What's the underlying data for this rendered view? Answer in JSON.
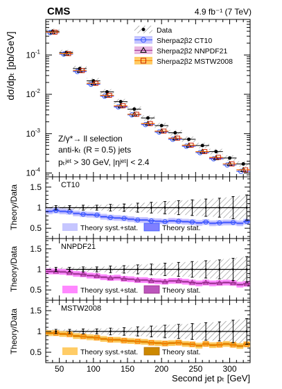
{
  "chart_data": [
    {
      "type": "scatter",
      "panel": "main",
      "experiment_label": "CMS",
      "luminosity_label": "4.9 fb⁻¹ (7 TeV)",
      "ylabel": "dσ/dpₜ [pb/GeV]",
      "yscale": "log",
      "ylim": [
        8e-05,
        0.8
      ],
      "xlim": [
        30,
        330
      ],
      "y_ticks": [
        {
          "value": 0.1,
          "base": "10",
          "exp": "-1"
        },
        {
          "value": 0.01,
          "base": "10",
          "exp": "-2"
        },
        {
          "value": 0.001,
          "base": "10",
          "exp": "-3"
        },
        {
          "value": 0.0001,
          "base": "10",
          "exp": "-4"
        }
      ],
      "annotations": [
        "Z/γ*→ ll selection",
        "anti-kₜ (R = 0.5) jets",
        "pₜʲᵉᵗ > 30 GeV, |ηʲᵉᵗ| < 2.4"
      ],
      "legend": [
        "Data",
        "Sherpa2β2 CT10",
        "Sherpa2β2 NNPDF21",
        "Sherpa2β2 MSTW2008"
      ],
      "legend_placement": "top-right",
      "colors": {
        "data": "#000000",
        "ct10": "#3355ff",
        "nnpdf": "#9a2a8a",
        "mstw": "#ff7f00",
        "hatch": "#888888"
      },
      "bin_edges": [
        30,
        40,
        50,
        60,
        70,
        80,
        90,
        100,
        110,
        120,
        130,
        140,
        150,
        160,
        170,
        180,
        190,
        200,
        210,
        220,
        230,
        240,
        250,
        260,
        270,
        280,
        290,
        300,
        310,
        320,
        330
      ],
      "bins": [
        {
          "x": 40,
          "lo": 30,
          "hi": 50
        },
        {
          "x": 60,
          "lo": 50,
          "hi": 70
        },
        {
          "x": 80,
          "lo": 70,
          "hi": 90
        },
        {
          "x": 100,
          "lo": 90,
          "hi": 110
        },
        {
          "x": 120,
          "lo": 110,
          "hi": 130
        },
        {
          "x": 140,
          "lo": 130,
          "hi": 150
        },
        {
          "x": 160,
          "lo": 150,
          "hi": 170
        },
        {
          "x": 180,
          "lo": 170,
          "hi": 190
        },
        {
          "x": 200,
          "lo": 190,
          "hi": 210
        },
        {
          "x": 220,
          "lo": 210,
          "hi": 230
        },
        {
          "x": 240,
          "lo": 230,
          "hi": 250
        },
        {
          "x": 260,
          "lo": 250,
          "hi": 270
        },
        {
          "x": 280,
          "lo": 270,
          "hi": 290
        },
        {
          "x": 300,
          "lo": 290,
          "hi": 310
        },
        {
          "x": 320,
          "lo": 310,
          "hi": 330
        }
      ],
      "series": [
        {
          "name": "Data",
          "key": "data",
          "values": [
            0.4,
            0.115,
            0.045,
            0.022,
            0.0115,
            0.0065,
            0.0042,
            0.0025,
            0.0016,
            0.00105,
            0.00072,
            0.0005,
            0.00035,
            0.00024,
            0.00017
          ]
        },
        {
          "name": "Sherpa2β2 CT10",
          "key": "ct10",
          "values": [
            0.37,
            0.105,
            0.038,
            0.018,
            0.009,
            0.0048,
            0.003,
            0.0017,
            0.0011,
            0.00072,
            0.00048,
            0.00033,
            0.00023,
            0.00016,
            0.00011
          ]
        },
        {
          "name": "Sherpa2β2 NNPDF21",
          "key": "nnpdf",
          "values": [
            0.38,
            0.108,
            0.04,
            0.019,
            0.0093,
            0.005,
            0.0031,
            0.0018,
            0.00115,
            0.00076,
            0.0005,
            0.00035,
            0.00024,
            0.00017,
            0.00012
          ]
        },
        {
          "name": "Sherpa2β2 MSTW2008",
          "key": "mstw",
          "values": [
            0.38,
            0.108,
            0.04,
            0.019,
            0.0094,
            0.0051,
            0.0031,
            0.0018,
            0.00116,
            0.00077,
            0.00051,
            0.00035,
            0.00025,
            0.00017,
            0.00012
          ]
        }
      ]
    },
    {
      "type": "line",
      "panel": "ratio",
      "label": "CT10",
      "ylabel": "Theory/Data",
      "ylim": [
        0.25,
        1.75
      ],
      "y_ticks": [
        0.5,
        1,
        1.5
      ],
      "legend": [
        "Theory syst.+stat.",
        "Theory stat."
      ],
      "colors": {
        "syst_band": "#c6c6ff",
        "stat_band": "#7f7fff",
        "line": "#3355ff",
        "box": "#8080ff"
      },
      "x": [
        35,
        45,
        55,
        65,
        75,
        85,
        95,
        105,
        115,
        125,
        135,
        145,
        155,
        165,
        175,
        185,
        195,
        205,
        215,
        225,
        235,
        245,
        255,
        265,
        275,
        285,
        295,
        305,
        315,
        325
      ],
      "data_uncertainty": [
        0.05,
        0.05,
        0.05,
        0.05,
        0.05,
        0.06,
        0.06,
        0.06,
        0.07,
        0.08,
        0.08,
        0.09,
        0.1,
        0.11,
        0.12,
        0.13,
        0.14,
        0.15,
        0.16,
        0.17,
        0.18,
        0.19,
        0.2,
        0.21,
        0.22,
        0.23,
        0.25,
        0.27,
        0.29,
        0.31
      ],
      "series": [
        {
          "name": "Theory stat.",
          "values": [
            0.91,
            0.93,
            0.91,
            0.9,
            0.86,
            0.84,
            0.83,
            0.82,
            0.78,
            0.76,
            0.75,
            0.74,
            0.72,
            0.7,
            0.7,
            0.68,
            0.67,
            0.66,
            0.68,
            0.67,
            0.66,
            0.65,
            0.63,
            0.65,
            0.62,
            0.63,
            0.64,
            0.64,
            0.62,
            0.66
          ],
          "syst": 0.07
        }
      ]
    },
    {
      "type": "line",
      "panel": "ratio",
      "label": "NNPDF21",
      "ylabel": "Theory/Data",
      "ylim": [
        0.25,
        1.75
      ],
      "y_ticks": [
        0.5,
        1,
        1.5
      ],
      "legend": [
        "Theory syst.+stat.",
        "Theory stat."
      ],
      "colors": {
        "syst_band": "#ff88ff",
        "stat_band": "#bb55bb",
        "line": "#9a2a8a",
        "box": "#c060c0"
      },
      "x": [
        35,
        45,
        55,
        65,
        75,
        85,
        95,
        105,
        115,
        125,
        135,
        145,
        155,
        165,
        175,
        185,
        195,
        205,
        215,
        225,
        235,
        245,
        255,
        265,
        275,
        285,
        295,
        305,
        315,
        325
      ],
      "data_uncertainty": [
        0.05,
        0.05,
        0.05,
        0.05,
        0.05,
        0.06,
        0.06,
        0.06,
        0.07,
        0.08,
        0.08,
        0.09,
        0.1,
        0.11,
        0.12,
        0.13,
        0.14,
        0.15,
        0.16,
        0.17,
        0.18,
        0.19,
        0.2,
        0.21,
        0.22,
        0.23,
        0.25,
        0.27,
        0.29,
        0.31
      ],
      "series": [
        {
          "name": "Theory stat.",
          "values": [
            0.95,
            0.95,
            0.94,
            0.92,
            0.89,
            0.88,
            0.85,
            0.84,
            0.81,
            0.79,
            0.8,
            0.77,
            0.76,
            0.74,
            0.74,
            0.72,
            0.71,
            0.7,
            0.72,
            0.72,
            0.7,
            0.68,
            0.66,
            0.68,
            0.66,
            0.67,
            0.68,
            0.67,
            0.63,
            0.65
          ],
          "syst": 0.07
        }
      ]
    },
    {
      "type": "line",
      "panel": "ratio",
      "label": "MSTW2008",
      "ylabel": "Theory/Data",
      "ylim": [
        0.25,
        1.75
      ],
      "y_ticks": [
        0.5,
        1,
        1.5
      ],
      "legend": [
        "Theory syst.+stat.",
        "Theory stat."
      ],
      "colors": {
        "syst_band": "#ffcc66",
        "stat_band": "#cc8800",
        "line": "#ff7f00",
        "box": "#e08a20"
      },
      "xlabel": "Second jet pₜ [GeV]",
      "x_ticks": [
        50,
        100,
        150,
        200,
        250,
        300
      ],
      "x": [
        35,
        45,
        55,
        65,
        75,
        85,
        95,
        105,
        115,
        125,
        135,
        145,
        155,
        165,
        175,
        185,
        195,
        205,
        215,
        225,
        235,
        245,
        255,
        265,
        275,
        285,
        295,
        305,
        315,
        325
      ],
      "data_uncertainty": [
        0.05,
        0.05,
        0.05,
        0.05,
        0.05,
        0.06,
        0.06,
        0.06,
        0.07,
        0.08,
        0.08,
        0.09,
        0.1,
        0.11,
        0.12,
        0.13,
        0.14,
        0.15,
        0.16,
        0.17,
        0.18,
        0.19,
        0.2,
        0.21,
        0.22,
        0.23,
        0.25,
        0.27,
        0.29,
        0.31
      ],
      "series": [
        {
          "name": "Theory stat.",
          "values": [
            0.96,
            0.96,
            0.94,
            0.93,
            0.89,
            0.88,
            0.86,
            0.85,
            0.82,
            0.8,
            0.8,
            0.78,
            0.77,
            0.76,
            0.75,
            0.73,
            0.72,
            0.71,
            0.72,
            0.73,
            0.7,
            0.69,
            0.66,
            0.7,
            0.67,
            0.68,
            0.7,
            0.68,
            0.65,
            0.69
          ],
          "syst": 0.07
        }
      ]
    }
  ]
}
